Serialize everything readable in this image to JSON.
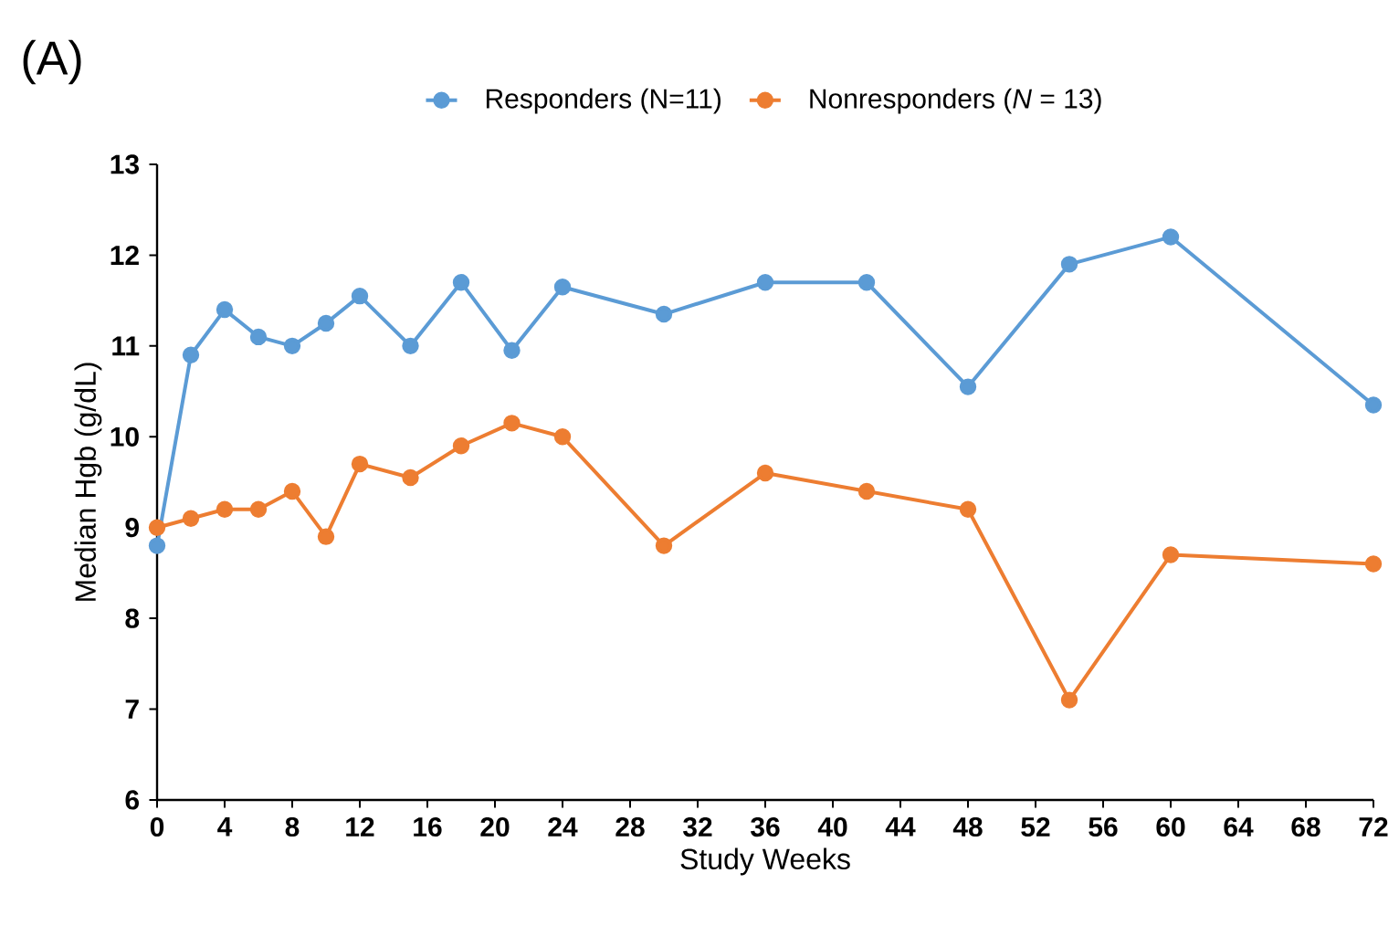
{
  "chart_data": {
    "type": "line",
    "title": "(A)",
    "xlabel": "Study Weeks",
    "ylabel": "Median Hgb (g/dL)",
    "x": [
      0,
      2,
      4,
      6,
      8,
      10,
      12,
      15,
      18,
      21,
      24,
      30,
      36,
      42,
      48,
      54,
      60,
      72
    ],
    "series": [
      {
        "name": "Responders (N=11)",
        "color": "#5b9bd5",
        "values": [
          8.8,
          10.9,
          11.4,
          11.1,
          11.0,
          11.25,
          11.55,
          11.0,
          11.7,
          10.95,
          11.65,
          11.35,
          11.7,
          11.7,
          10.55,
          11.9,
          12.2,
          10.35
        ]
      },
      {
        "name": "Nonresponders (*N* = 13)",
        "color": "#ed7d31",
        "values": [
          9.0,
          9.1,
          9.2,
          9.2,
          9.4,
          8.9,
          9.7,
          9.55,
          9.9,
          10.15,
          10.0,
          8.8,
          9.6,
          9.4,
          9.2,
          7.1,
          8.7,
          8.6
        ]
      }
    ],
    "xlim": [
      0,
      72
    ],
    "ylim": [
      6,
      13
    ],
    "xticks": [
      0,
      4,
      8,
      12,
      16,
      20,
      24,
      28,
      32,
      36,
      40,
      44,
      48,
      52,
      56,
      60,
      64,
      68,
      72
    ],
    "yticks": [
      6,
      7,
      8,
      9,
      10,
      11,
      12,
      13
    ],
    "legend": "top",
    "marker": "circle"
  }
}
